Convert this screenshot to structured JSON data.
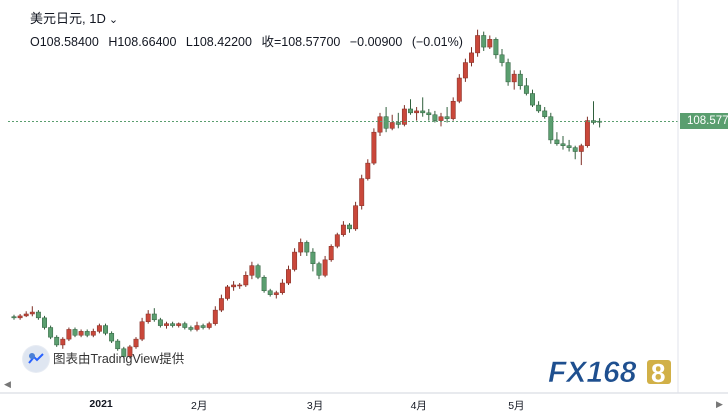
{
  "header": {
    "symbol": "美元日元",
    "separator": ",",
    "interval": "1D",
    "open_label": "O",
    "open": "108.58400",
    "high_label": "H",
    "high": "108.66400",
    "low_label": "L",
    "low": "108.42200",
    "close_label": "收=",
    "close": "108.57700",
    "change": "−0.00900",
    "change_pct": "(−0.01%)"
  },
  "price_tag": "108.577",
  "attribution": "图表由TradingView提供",
  "logo_text": "FX168",
  "colors": {
    "up": "#c9473a",
    "down": "#5a9e6f",
    "wick_up": "#7f2d24",
    "wick_down": "#2f5f3c",
    "price_tag": "#5a9e6f"
  },
  "chart_data": {
    "type": "candlestick",
    "series": [
      {
        "ohlc": [
          [
            103.53,
            103.58,
            103.45,
            103.5
          ],
          [
            103.5,
            103.6,
            103.45,
            103.55
          ],
          [
            103.55,
            103.67,
            103.52,
            103.6
          ],
          [
            103.6,
            103.8,
            103.54,
            103.65
          ],
          [
            103.65,
            103.7,
            103.45,
            103.5
          ],
          [
            103.5,
            103.55,
            103.2,
            103.25
          ],
          [
            103.25,
            103.3,
            102.95,
            103.0
          ],
          [
            103.0,
            103.05,
            102.75,
            102.8
          ],
          [
            102.8,
            103.0,
            102.7,
            102.95
          ],
          [
            102.95,
            103.25,
            102.9,
            103.2
          ],
          [
            103.2,
            103.25,
            103.0,
            103.05
          ],
          [
            103.05,
            103.2,
            103.0,
            103.15
          ],
          [
            103.15,
            103.2,
            103.0,
            103.05
          ],
          [
            103.05,
            103.22,
            103.0,
            103.15
          ],
          [
            103.15,
            103.35,
            103.1,
            103.3
          ],
          [
            103.3,
            103.35,
            103.05,
            103.1
          ],
          [
            103.1,
            103.15,
            102.85,
            102.9
          ],
          [
            102.9,
            102.95,
            102.65,
            102.7
          ],
          [
            102.7,
            102.75,
            102.45,
            102.5
          ],
          [
            102.5,
            102.8,
            102.45,
            102.75
          ],
          [
            102.75,
            103.0,
            102.7,
            102.95
          ],
          [
            102.95,
            103.5,
            102.9,
            103.4
          ],
          [
            103.4,
            103.7,
            103.35,
            103.6
          ],
          [
            103.6,
            103.75,
            103.4,
            103.45
          ],
          [
            103.45,
            103.5,
            103.25,
            103.3
          ],
          [
            103.3,
            103.4,
            103.22,
            103.35
          ],
          [
            103.35,
            103.4,
            103.25,
            103.3
          ],
          [
            103.3,
            103.38,
            103.25,
            103.35
          ],
          [
            103.35,
            103.4,
            103.2,
            103.25
          ],
          [
            103.25,
            103.3,
            103.15,
            103.2
          ],
          [
            103.2,
            103.4,
            103.15,
            103.3
          ],
          [
            103.3,
            103.35,
            103.2,
            103.25
          ],
          [
            103.25,
            103.4,
            103.2,
            103.35
          ],
          [
            103.35,
            103.8,
            103.3,
            103.7
          ],
          [
            103.7,
            104.1,
            103.65,
            104.0
          ],
          [
            104.0,
            104.35,
            103.95,
            104.3
          ],
          [
            104.3,
            104.45,
            104.2,
            104.35
          ],
          [
            104.35,
            104.4,
            104.25,
            104.35
          ],
          [
            104.35,
            104.7,
            104.3,
            104.6
          ],
          [
            104.6,
            104.95,
            104.5,
            104.85
          ],
          [
            104.85,
            104.9,
            104.5,
            104.55
          ],
          [
            104.55,
            104.6,
            104.15,
            104.2
          ],
          [
            104.2,
            104.25,
            104.05,
            104.1
          ],
          [
            104.1,
            104.2,
            104.0,
            104.15
          ],
          [
            104.15,
            104.5,
            104.1,
            104.4
          ],
          [
            104.4,
            104.85,
            104.35,
            104.75
          ],
          [
            104.75,
            105.3,
            104.7,
            105.2
          ],
          [
            105.2,
            105.55,
            105.1,
            105.45
          ],
          [
            105.45,
            105.5,
            105.1,
            105.2
          ],
          [
            105.2,
            105.3,
            104.7,
            104.9
          ],
          [
            104.9,
            104.95,
            104.5,
            104.6
          ],
          [
            104.6,
            105.1,
            104.55,
            105.0
          ],
          [
            105.0,
            105.4,
            104.95,
            105.35
          ],
          [
            105.35,
            105.7,
            105.3,
            105.65
          ],
          [
            105.65,
            106.0,
            105.6,
            105.9
          ],
          [
            105.9,
            105.95,
            105.7,
            105.8
          ],
          [
            105.8,
            106.5,
            105.75,
            106.4
          ],
          [
            106.4,
            107.2,
            106.3,
            107.1
          ],
          [
            107.1,
            107.6,
            107.05,
            107.5
          ],
          [
            107.5,
            108.4,
            107.45,
            108.3
          ],
          [
            108.3,
            108.8,
            108.2,
            108.7
          ],
          [
            108.7,
            108.95,
            108.3,
            108.4
          ],
          [
            108.4,
            108.75,
            108.35,
            108.55
          ],
          [
            108.55,
            108.8,
            108.4,
            108.5
          ],
          [
            108.5,
            109.0,
            108.45,
            108.9
          ],
          [
            108.9,
            109.15,
            108.75,
            108.8
          ],
          [
            108.8,
            108.95,
            108.6,
            108.85
          ],
          [
            108.85,
            109.2,
            108.7,
            108.8
          ],
          [
            108.8,
            108.9,
            108.6,
            108.75
          ],
          [
            108.75,
            108.85,
            108.55,
            108.6
          ],
          [
            108.6,
            108.8,
            108.45,
            108.7
          ],
          [
            108.7,
            108.95,
            108.55,
            108.65
          ],
          [
            108.65,
            109.2,
            108.6,
            109.1
          ],
          [
            109.1,
            109.8,
            109.05,
            109.7
          ],
          [
            109.7,
            110.2,
            109.6,
            110.1
          ],
          [
            110.1,
            110.5,
            110.0,
            110.35
          ],
          [
            110.35,
            110.95,
            110.25,
            110.8
          ],
          [
            110.8,
            110.9,
            110.4,
            110.5
          ],
          [
            110.5,
            110.8,
            110.45,
            110.7
          ],
          [
            110.7,
            110.75,
            110.2,
            110.3
          ],
          [
            110.3,
            110.45,
            110.0,
            110.1
          ],
          [
            110.1,
            110.2,
            109.5,
            109.6
          ],
          [
            109.6,
            109.9,
            109.4,
            109.8
          ],
          [
            109.8,
            109.9,
            109.4,
            109.5
          ],
          [
            109.5,
            109.7,
            109.25,
            109.3
          ],
          [
            109.3,
            109.4,
            108.95,
            109.0
          ],
          [
            109.0,
            109.1,
            108.8,
            108.85
          ],
          [
            108.85,
            108.95,
            108.65,
            108.7
          ],
          [
            108.7,
            108.8,
            108.0,
            108.1
          ],
          [
            108.1,
            108.3,
            107.95,
            108.0
          ],
          [
            108.0,
            108.2,
            107.85,
            107.95
          ],
          [
            107.95,
            108.1,
            107.8,
            107.9
          ],
          [
            107.9,
            107.95,
            107.6,
            107.8
          ],
          [
            107.8,
            108.0,
            107.45,
            107.95
          ],
          [
            107.95,
            108.7,
            107.9,
            108.6
          ],
          [
            108.6,
            109.1,
            108.5,
            108.55
          ],
          [
            108.584,
            108.664,
            108.422,
            108.577
          ]
        ]
      }
    ],
    "x_tick_labels": [
      "2021",
      "2月",
      "3月",
      "4月",
      "5月"
    ],
    "x_tick_index": [
      14,
      30,
      49,
      66,
      82
    ],
    "y_range": [
      102.1,
      111.2
    ],
    "last_price": 108.577
  }
}
